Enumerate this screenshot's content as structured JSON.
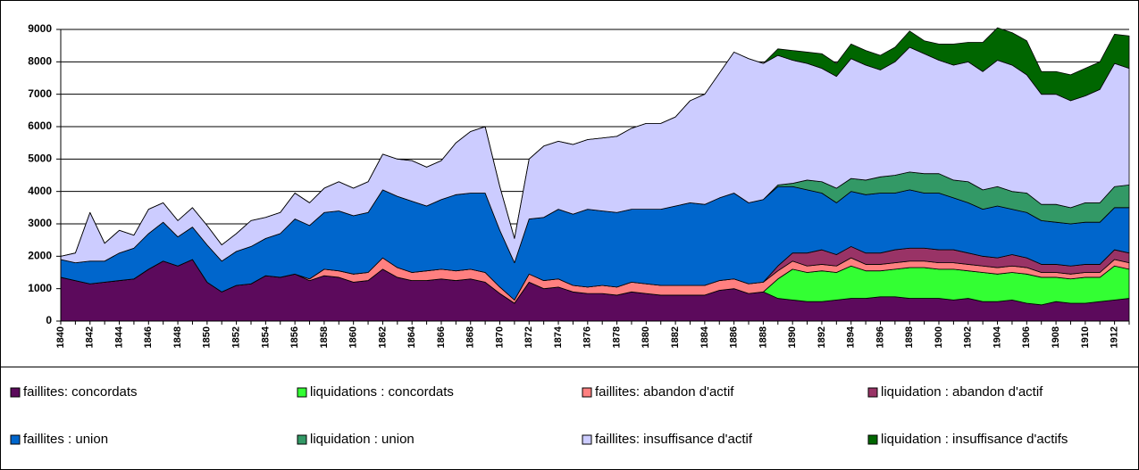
{
  "chart_data": {
    "type": "stacked_area",
    "categories": [
      "1840",
      null,
      "1842",
      null,
      "1844",
      null,
      "1846",
      null,
      "1848",
      null,
      "1850",
      null,
      "1852",
      null,
      "1854",
      null,
      "1856",
      null,
      "1858",
      null,
      "1860",
      null,
      "1862",
      null,
      "1864",
      null,
      "1866",
      null,
      "1868",
      null,
      "1870",
      null,
      "1872",
      null,
      "1874",
      null,
      "1876",
      null,
      "1878",
      null,
      "1880",
      null,
      "1882",
      null,
      "1884",
      null,
      "1886",
      null,
      "1888",
      null,
      "1890",
      null,
      "1892",
      null,
      "1894",
      null,
      "1896",
      null,
      "1898",
      null,
      "1900",
      null,
      "1902",
      null,
      "1904",
      null,
      "1906",
      null,
      "1908",
      null,
      "1910",
      null,
      "1912",
      null
    ],
    "series": [
      {
        "name": "faillites: concordats",
        "color": "#5c0a5c",
        "values": [
          1350,
          1250,
          1150,
          1200,
          1250,
          1300,
          1600,
          1850,
          1700,
          1900,
          1200,
          900,
          1100,
          1150,
          1400,
          1350,
          1450,
          1250,
          1400,
          1350,
          1200,
          1250,
          1600,
          1350,
          1250,
          1250,
          1300,
          1250,
          1300,
          1200,
          850,
          550,
          1200,
          1000,
          1050,
          900,
          850,
          850,
          800,
          900,
          850,
          800,
          800,
          800,
          800,
          950,
          1000,
          850,
          900,
          700,
          650,
          600,
          600,
          650,
          700,
          700,
          750,
          750,
          700,
          700,
          700,
          650,
          700,
          600,
          600,
          650,
          550,
          500,
          600,
          550,
          550,
          600,
          650,
          700
        ]
      },
      {
        "name": "liquidations : concordats",
        "color": "#33ff33",
        "values": [
          0,
          0,
          0,
          0,
          0,
          0,
          0,
          0,
          0,
          0,
          0,
          0,
          0,
          0,
          0,
          0,
          0,
          0,
          0,
          0,
          0,
          0,
          0,
          0,
          0,
          0,
          0,
          0,
          0,
          0,
          0,
          0,
          0,
          0,
          0,
          0,
          0,
          0,
          0,
          0,
          0,
          0,
          0,
          0,
          0,
          0,
          0,
          0,
          0,
          600,
          950,
          900,
          950,
          850,
          1000,
          850,
          800,
          850,
          950,
          950,
          900,
          950,
          850,
          900,
          850,
          850,
          900,
          850,
          750,
          750,
          800,
          750,
          1050,
          900
        ]
      },
      {
        "name": "faillites: abandon d'actif",
        "color": "#ff8080",
        "values": [
          0,
          0,
          0,
          0,
          0,
          0,
          0,
          0,
          0,
          0,
          0,
          0,
          0,
          0,
          0,
          0,
          0,
          50,
          200,
          200,
          250,
          250,
          350,
          300,
          250,
          300,
          300,
          300,
          300,
          300,
          200,
          100,
          250,
          250,
          250,
          200,
          200,
          250,
          250,
          300,
          300,
          300,
          300,
          300,
          300,
          300,
          300,
          300,
          300,
          250,
          250,
          200,
          200,
          200,
          250,
          200,
          200,
          200,
          200,
          200,
          200,
          200,
          200,
          200,
          200,
          200,
          200,
          150,
          150,
          150,
          150,
          150,
          200,
          200
        ]
      },
      {
        "name": "liquidation : abandon d'actif",
        "color": "#993366",
        "values": [
          0,
          0,
          0,
          0,
          0,
          0,
          0,
          0,
          0,
          0,
          0,
          0,
          0,
          0,
          0,
          0,
          0,
          0,
          0,
          0,
          0,
          0,
          0,
          0,
          0,
          0,
          0,
          0,
          0,
          0,
          0,
          0,
          0,
          0,
          0,
          0,
          0,
          0,
          0,
          0,
          0,
          0,
          0,
          0,
          0,
          0,
          0,
          0,
          0,
          150,
          250,
          400,
          450,
          350,
          350,
          350,
          350,
          400,
          400,
          400,
          400,
          400,
          350,
          300,
          300,
          350,
          300,
          250,
          250,
          250,
          250,
          250,
          300,
          300
        ]
      },
      {
        "name": "faillites : union",
        "color": "#0066cc",
        "values": [
          550,
          550,
          700,
          650,
          850,
          950,
          1100,
          1200,
          900,
          1000,
          1150,
          950,
          1050,
          1150,
          1150,
          1350,
          1700,
          1650,
          1750,
          1850,
          1800,
          1850,
          2100,
          2200,
          2200,
          2000,
          2150,
          2350,
          2350,
          2450,
          1750,
          1150,
          1700,
          1950,
          2150,
          2200,
          2400,
          2300,
          2300,
          2250,
          2300,
          2350,
          2450,
          2550,
          2500,
          2550,
          2650,
          2500,
          2550,
          2450,
          2050,
          1950,
          1750,
          1600,
          1700,
          1800,
          1850,
          1750,
          1800,
          1700,
          1750,
          1600,
          1550,
          1450,
          1600,
          1400,
          1400,
          1350,
          1300,
          1300,
          1300,
          1300,
          1300,
          1400
        ]
      },
      {
        "name": "liquidation : union",
        "color": "#339966",
        "values": [
          0,
          0,
          0,
          0,
          0,
          0,
          0,
          0,
          0,
          0,
          0,
          0,
          0,
          0,
          0,
          0,
          0,
          0,
          0,
          0,
          0,
          0,
          0,
          0,
          0,
          0,
          0,
          0,
          0,
          0,
          0,
          0,
          0,
          0,
          0,
          0,
          0,
          0,
          0,
          0,
          0,
          0,
          0,
          0,
          0,
          0,
          0,
          0,
          0,
          50,
          100,
          300,
          350,
          450,
          400,
          450,
          500,
          550,
          550,
          600,
          600,
          550,
          650,
          600,
          600,
          550,
          600,
          500,
          550,
          500,
          600,
          600,
          650,
          700
        ]
      },
      {
        "name": "faillites: insuffisance d'actif",
        "color": "#ccccff",
        "values": [
          100,
          300,
          1500,
          550,
          700,
          400,
          750,
          600,
          500,
          600,
          600,
          500,
          550,
          800,
          650,
          650,
          800,
          700,
          750,
          900,
          850,
          950,
          1100,
          1150,
          1250,
          1200,
          1200,
          1600,
          1900,
          2050,
          1350,
          750,
          1850,
          2200,
          2100,
          2150,
          2150,
          2250,
          2350,
          2500,
          2650,
          2650,
          2750,
          3150,
          3400,
          3850,
          4350,
          4450,
          4200,
          4000,
          3800,
          3600,
          3500,
          3450,
          3700,
          3550,
          3300,
          3500,
          3850,
          3700,
          3500,
          3550,
          3700,
          3650,
          3900,
          3900,
          3650,
          3400,
          3400,
          3300,
          3300,
          3500,
          3800,
          3600
        ]
      },
      {
        "name": "liquidation : insuffisance d'actifs",
        "color": "#006600",
        "values": [
          0,
          0,
          0,
          0,
          0,
          0,
          0,
          0,
          0,
          0,
          0,
          0,
          0,
          0,
          0,
          0,
          0,
          0,
          0,
          0,
          0,
          0,
          0,
          0,
          0,
          0,
          0,
          0,
          0,
          0,
          0,
          0,
          0,
          0,
          0,
          0,
          0,
          0,
          0,
          0,
          0,
          0,
          0,
          0,
          0,
          0,
          0,
          0,
          0,
          200,
          300,
          350,
          450,
          400,
          450,
          450,
          450,
          450,
          500,
          400,
          500,
          650,
          600,
          900,
          1000,
          1000,
          1050,
          700,
          700,
          800,
          850,
          850,
          900,
          1000
        ]
      }
    ],
    "ylim": [
      0,
      9000
    ],
    "yticks": [
      0,
      1000,
      2000,
      3000,
      4000,
      5000,
      6000,
      7000,
      8000,
      9000
    ],
    "grid": true
  }
}
